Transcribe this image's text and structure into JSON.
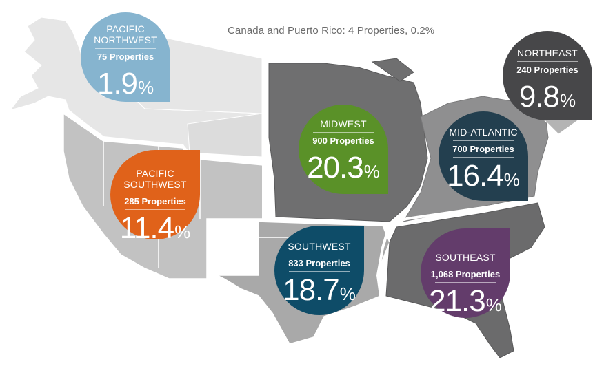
{
  "note": "Canada and Puerto Rico: 4 Properties, 0.2%",
  "colors": {
    "pacific_northwest": "#86b4cf",
    "pacific_southwest": "#e0621a",
    "midwest": "#5a9128",
    "southwest": "#0e4c68",
    "mid_atlantic": "#233f4f",
    "northeast": "#474749",
    "southeast": "#633c6b"
  },
  "regions": {
    "pacific_northwest": {
      "name_line1": "PACIFIC",
      "name_line2": "NORTHWEST",
      "properties": "75 Properties",
      "percent": "1.9",
      "sign": "%"
    },
    "pacific_southwest": {
      "name_line1": "PACIFIC",
      "name_line2": "SOUTHWEST",
      "properties": "285 Properties",
      "percent": "11.4",
      "sign": "%"
    },
    "midwest": {
      "name_line1": "MIDWEST",
      "properties": "900 Properties",
      "percent": "20.3",
      "sign": "%"
    },
    "southwest": {
      "name_line1": "SOUTHWEST",
      "properties": "833 Properties",
      "percent": "18.7",
      "sign": "%"
    },
    "mid_atlantic": {
      "name_line1": "MID-ATLANTIC",
      "properties": "700 Properties",
      "percent": "16.4",
      "sign": "%"
    },
    "northeast": {
      "name_line1": "NORTHEAST",
      "properties": "240 Properties",
      "percent": "9.8",
      "sign": "%"
    },
    "southeast": {
      "name_line1": "SOUTHEAST",
      "properties": "1,068 Properties",
      "percent": "21.3",
      "sign": "%"
    }
  }
}
